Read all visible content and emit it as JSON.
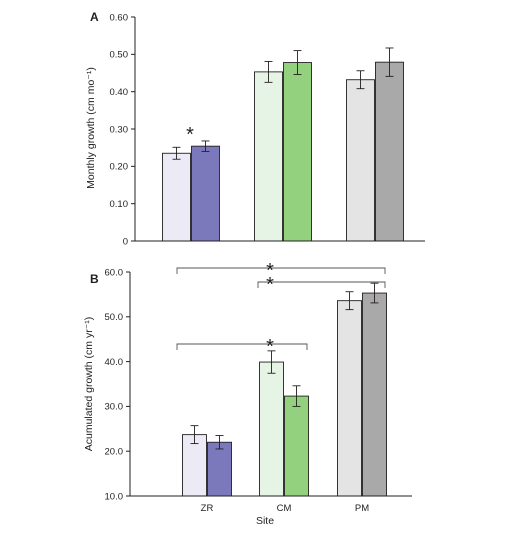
{
  "chart_data": [
    {
      "panel": "A",
      "type": "bar",
      "categories": [
        "ZR",
        "CM",
        "PM"
      ],
      "series": [
        {
          "values": [
            0.235,
            0.453,
            0.432
          ],
          "errors": [
            0.016,
            0.028,
            0.024
          ]
        },
        {
          "values": [
            0.254,
            0.478,
            0.479
          ],
          "errors": [
            0.014,
            0.032,
            0.038
          ]
        }
      ],
      "ylabel": "Monthly growth (cm mo⁻¹)",
      "ylim": [
        0,
        0.6
      ],
      "yticks": [
        "0",
        "0.10",
        "0.20",
        "0.30",
        "0.40",
        "0.50",
        "0.60"
      ],
      "show_x_tick_labels": false,
      "annotations": [
        {
          "type": "star",
          "label": "*",
          "category": "ZR"
        }
      ],
      "colors": {
        "ZR": [
          "#eceaf4",
          "#7b79bb"
        ],
        "CM": [
          "#e6f4e6",
          "#93d17f"
        ],
        "PM": [
          "#e4e4e4",
          "#a9a9a9"
        ]
      },
      "grid": false
    },
    {
      "panel": "B",
      "type": "bar",
      "categories": [
        "ZR",
        "CM",
        "PM"
      ],
      "series": [
        {
          "values": [
            23.7,
            39.9,
            53.6
          ],
          "errors": [
            2.0,
            2.5,
            2.0
          ]
        },
        {
          "values": [
            22.0,
            32.3,
            55.3
          ],
          "errors": [
            1.5,
            2.3,
            2.2
          ]
        }
      ],
      "xlabel": "Site",
      "ylabel": "Acumulated growth (cm yr⁻¹)",
      "ylim": [
        10,
        60
      ],
      "yticks": [
        "10.0",
        "20.0",
        "30.0",
        "40.0",
        "50.0",
        "60.0"
      ],
      "annotations": [
        {
          "type": "bracket",
          "label": "*",
          "from": "ZR",
          "to": "PM"
        },
        {
          "type": "bracket",
          "label": "*",
          "from": "CM",
          "to": "PM"
        },
        {
          "type": "bracket",
          "label": "*",
          "from": "ZR",
          "to": "CM"
        }
      ],
      "colors": {
        "ZR": [
          "#eceaf4",
          "#7b79bb"
        ],
        "CM": [
          "#e6f4e6",
          "#93d17f"
        ],
        "PM": [
          "#e4e4e4",
          "#a9a9a9"
        ]
      },
      "grid": false
    }
  ]
}
